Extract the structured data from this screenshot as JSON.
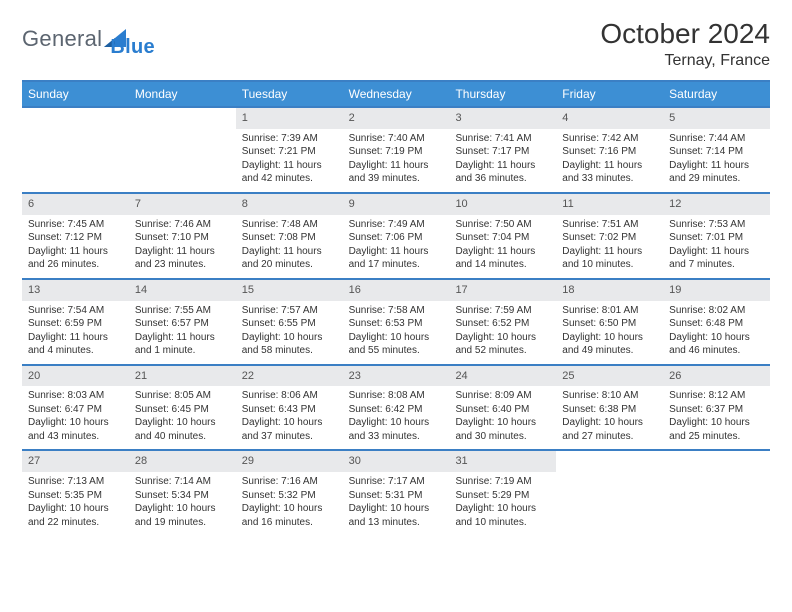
{
  "brand": {
    "name_a": "General",
    "name_b": "Blue"
  },
  "title": "October 2024",
  "location": "Ternay, France",
  "colors": {
    "header_bar": "#3d8fd4",
    "rule": "#3b7fc4",
    "daynum_bg": "#e8e9eb",
    "text": "#333333",
    "logo_gray": "#5c6570",
    "logo_blue": "#2a7dcf"
  },
  "dow": [
    "Sunday",
    "Monday",
    "Tuesday",
    "Wednesday",
    "Thursday",
    "Friday",
    "Saturday"
  ],
  "weeks": [
    [
      {
        "n": "",
        "sr": "",
        "ss": "",
        "dl": ""
      },
      {
        "n": "",
        "sr": "",
        "ss": "",
        "dl": ""
      },
      {
        "n": "1",
        "sr": "Sunrise: 7:39 AM",
        "ss": "Sunset: 7:21 PM",
        "dl": "Daylight: 11 hours and 42 minutes."
      },
      {
        "n": "2",
        "sr": "Sunrise: 7:40 AM",
        "ss": "Sunset: 7:19 PM",
        "dl": "Daylight: 11 hours and 39 minutes."
      },
      {
        "n": "3",
        "sr": "Sunrise: 7:41 AM",
        "ss": "Sunset: 7:17 PM",
        "dl": "Daylight: 11 hours and 36 minutes."
      },
      {
        "n": "4",
        "sr": "Sunrise: 7:42 AM",
        "ss": "Sunset: 7:16 PM",
        "dl": "Daylight: 11 hours and 33 minutes."
      },
      {
        "n": "5",
        "sr": "Sunrise: 7:44 AM",
        "ss": "Sunset: 7:14 PM",
        "dl": "Daylight: 11 hours and 29 minutes."
      }
    ],
    [
      {
        "n": "6",
        "sr": "Sunrise: 7:45 AM",
        "ss": "Sunset: 7:12 PM",
        "dl": "Daylight: 11 hours and 26 minutes."
      },
      {
        "n": "7",
        "sr": "Sunrise: 7:46 AM",
        "ss": "Sunset: 7:10 PM",
        "dl": "Daylight: 11 hours and 23 minutes."
      },
      {
        "n": "8",
        "sr": "Sunrise: 7:48 AM",
        "ss": "Sunset: 7:08 PM",
        "dl": "Daylight: 11 hours and 20 minutes."
      },
      {
        "n": "9",
        "sr": "Sunrise: 7:49 AM",
        "ss": "Sunset: 7:06 PM",
        "dl": "Daylight: 11 hours and 17 minutes."
      },
      {
        "n": "10",
        "sr": "Sunrise: 7:50 AM",
        "ss": "Sunset: 7:04 PM",
        "dl": "Daylight: 11 hours and 14 minutes."
      },
      {
        "n": "11",
        "sr": "Sunrise: 7:51 AM",
        "ss": "Sunset: 7:02 PM",
        "dl": "Daylight: 11 hours and 10 minutes."
      },
      {
        "n": "12",
        "sr": "Sunrise: 7:53 AM",
        "ss": "Sunset: 7:01 PM",
        "dl": "Daylight: 11 hours and 7 minutes."
      }
    ],
    [
      {
        "n": "13",
        "sr": "Sunrise: 7:54 AM",
        "ss": "Sunset: 6:59 PM",
        "dl": "Daylight: 11 hours and 4 minutes."
      },
      {
        "n": "14",
        "sr": "Sunrise: 7:55 AM",
        "ss": "Sunset: 6:57 PM",
        "dl": "Daylight: 11 hours and 1 minute."
      },
      {
        "n": "15",
        "sr": "Sunrise: 7:57 AM",
        "ss": "Sunset: 6:55 PM",
        "dl": "Daylight: 10 hours and 58 minutes."
      },
      {
        "n": "16",
        "sr": "Sunrise: 7:58 AM",
        "ss": "Sunset: 6:53 PM",
        "dl": "Daylight: 10 hours and 55 minutes."
      },
      {
        "n": "17",
        "sr": "Sunrise: 7:59 AM",
        "ss": "Sunset: 6:52 PM",
        "dl": "Daylight: 10 hours and 52 minutes."
      },
      {
        "n": "18",
        "sr": "Sunrise: 8:01 AM",
        "ss": "Sunset: 6:50 PM",
        "dl": "Daylight: 10 hours and 49 minutes."
      },
      {
        "n": "19",
        "sr": "Sunrise: 8:02 AM",
        "ss": "Sunset: 6:48 PM",
        "dl": "Daylight: 10 hours and 46 minutes."
      }
    ],
    [
      {
        "n": "20",
        "sr": "Sunrise: 8:03 AM",
        "ss": "Sunset: 6:47 PM",
        "dl": "Daylight: 10 hours and 43 minutes."
      },
      {
        "n": "21",
        "sr": "Sunrise: 8:05 AM",
        "ss": "Sunset: 6:45 PM",
        "dl": "Daylight: 10 hours and 40 minutes."
      },
      {
        "n": "22",
        "sr": "Sunrise: 8:06 AM",
        "ss": "Sunset: 6:43 PM",
        "dl": "Daylight: 10 hours and 37 minutes."
      },
      {
        "n": "23",
        "sr": "Sunrise: 8:08 AM",
        "ss": "Sunset: 6:42 PM",
        "dl": "Daylight: 10 hours and 33 minutes."
      },
      {
        "n": "24",
        "sr": "Sunrise: 8:09 AM",
        "ss": "Sunset: 6:40 PM",
        "dl": "Daylight: 10 hours and 30 minutes."
      },
      {
        "n": "25",
        "sr": "Sunrise: 8:10 AM",
        "ss": "Sunset: 6:38 PM",
        "dl": "Daylight: 10 hours and 27 minutes."
      },
      {
        "n": "26",
        "sr": "Sunrise: 8:12 AM",
        "ss": "Sunset: 6:37 PM",
        "dl": "Daylight: 10 hours and 25 minutes."
      }
    ],
    [
      {
        "n": "27",
        "sr": "Sunrise: 7:13 AM",
        "ss": "Sunset: 5:35 PM",
        "dl": "Daylight: 10 hours and 22 minutes."
      },
      {
        "n": "28",
        "sr": "Sunrise: 7:14 AM",
        "ss": "Sunset: 5:34 PM",
        "dl": "Daylight: 10 hours and 19 minutes."
      },
      {
        "n": "29",
        "sr": "Sunrise: 7:16 AM",
        "ss": "Sunset: 5:32 PM",
        "dl": "Daylight: 10 hours and 16 minutes."
      },
      {
        "n": "30",
        "sr": "Sunrise: 7:17 AM",
        "ss": "Sunset: 5:31 PM",
        "dl": "Daylight: 10 hours and 13 minutes."
      },
      {
        "n": "31",
        "sr": "Sunrise: 7:19 AM",
        "ss": "Sunset: 5:29 PM",
        "dl": "Daylight: 10 hours and 10 minutes."
      },
      {
        "n": "",
        "sr": "",
        "ss": "",
        "dl": ""
      },
      {
        "n": "",
        "sr": "",
        "ss": "",
        "dl": ""
      }
    ]
  ]
}
